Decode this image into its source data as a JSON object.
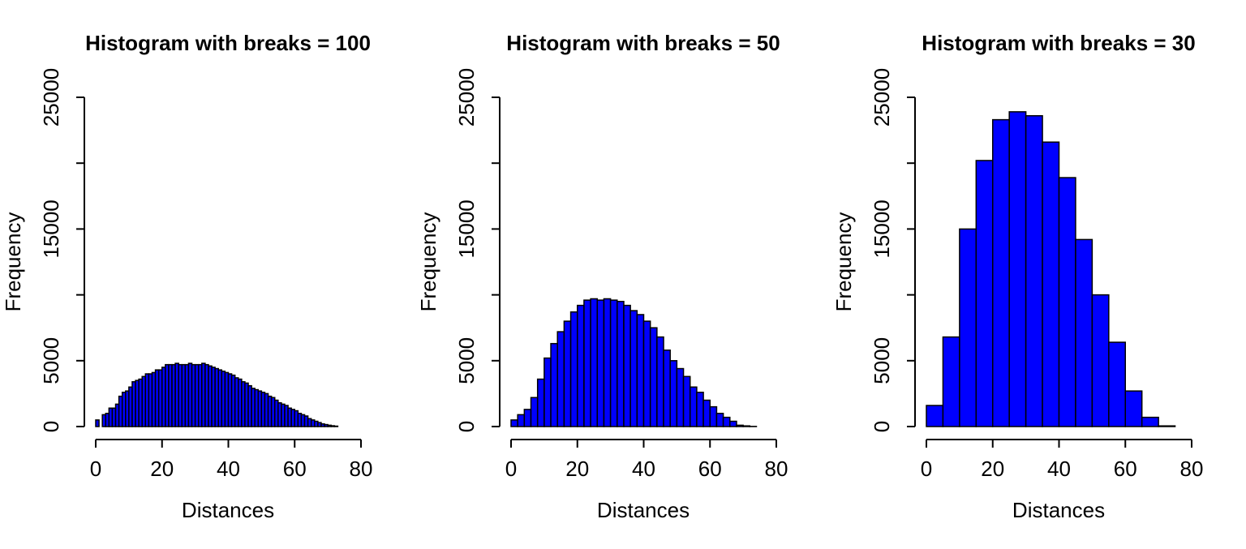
{
  "colors": {
    "bar_fill": "#0000ff",
    "bar_stroke": "#000000",
    "background": "#ffffff"
  },
  "chart_data": [
    {
      "type": "bar",
      "title": "Histogram with breaks = 100",
      "xlabel": "Distances",
      "ylabel": "Frequency",
      "xlim": [
        0,
        80
      ],
      "ylim": [
        0,
        25000
      ],
      "xticks": [
        "0",
        "20",
        "40",
        "60",
        "80"
      ],
      "yticks": [
        "0",
        "5000",
        "15000",
        "25000"
      ],
      "grid": false,
      "bin_width": 1,
      "bin_start": 0,
      "values": [
        500,
        0,
        900,
        1000,
        1400,
        1400,
        1700,
        2300,
        2600,
        2700,
        3000,
        3400,
        3500,
        3600,
        3800,
        4000,
        4000,
        4100,
        4300,
        4300,
        4500,
        4700,
        4700,
        4700,
        4800,
        4700,
        4700,
        4700,
        4800,
        4700,
        4700,
        4700,
        4800,
        4700,
        4600,
        4500,
        4400,
        4300,
        4200,
        4100,
        4000,
        3900,
        3700,
        3600,
        3400,
        3300,
        3100,
        2900,
        2800,
        2700,
        2600,
        2500,
        2300,
        2200,
        2000,
        1800,
        1700,
        1600,
        1400,
        1300,
        1200,
        1000,
        900,
        800,
        600,
        500,
        400,
        300,
        200,
        150,
        100,
        60,
        30
      ]
    },
    {
      "type": "bar",
      "title": "Histogram with breaks = 50",
      "xlabel": "Distances",
      "ylabel": "Frequency",
      "xlim": [
        0,
        80
      ],
      "ylim": [
        0,
        25000
      ],
      "xticks": [
        "0",
        "20",
        "40",
        "60",
        "80"
      ],
      "yticks": [
        "0",
        "5000",
        "15000",
        "25000"
      ],
      "grid": false,
      "bin_width": 2,
      "bin_start": 0,
      "values": [
        500,
        900,
        1300,
        2200,
        3600,
        5200,
        6300,
        7200,
        8000,
        8700,
        9200,
        9600,
        9700,
        9600,
        9700,
        9600,
        9500,
        9200,
        8800,
        8500,
        8000,
        7500,
        6800,
        5800,
        5000,
        4400,
        3800,
        3000,
        2600,
        2000,
        1500,
        1000,
        700,
        400,
        100,
        50,
        10
      ]
    },
    {
      "type": "bar",
      "title": "Histogram with breaks = 30",
      "xlabel": "Distances",
      "ylabel": "Frequency",
      "xlim": [
        0,
        80
      ],
      "ylim": [
        0,
        25000
      ],
      "xticks": [
        "0",
        "20",
        "40",
        "60",
        "80"
      ],
      "yticks": [
        "0",
        "5000",
        "15000",
        "25000"
      ],
      "grid": false,
      "bin_width": 5,
      "bin_start": 0,
      "values": [
        1600,
        6800,
        15000,
        20200,
        23300,
        23900,
        23600,
        21600,
        18900,
        14200,
        10000,
        6400,
        2700,
        700,
        50
      ]
    }
  ]
}
